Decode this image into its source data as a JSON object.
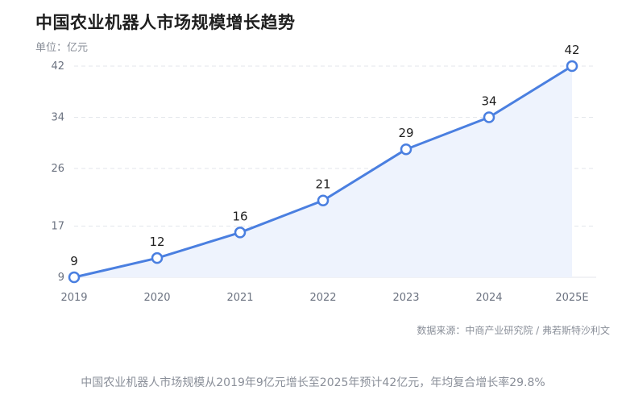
{
  "title": "中国农业机器人市场规模增长趋势",
  "unit_label": "单位：亿元",
  "source": "数据来源：中商产业研究院 / 弗若斯特沙利文",
  "caption": "中国农业机器人市场规模从2019年9亿元增长至2025年预计42亿元，年均复合增长率29.8%",
  "colors": {
    "line": "#4a7fe0",
    "area": "#eef3fd",
    "grid": "#e3e6eb",
    "axis_text": "#6b7280",
    "label_text": "#1f1f1f"
  },
  "chart_data": {
    "type": "line",
    "categories": [
      "2019",
      "2020",
      "2021",
      "2022",
      "2023",
      "2024",
      "2025E"
    ],
    "values": [
      9,
      12,
      16,
      21,
      29,
      34,
      42
    ],
    "y_ticks": [
      "9",
      "17",
      "26",
      "34",
      "42"
    ],
    "ylim": [
      9,
      42
    ],
    "grid": true,
    "area_fill": true
  }
}
